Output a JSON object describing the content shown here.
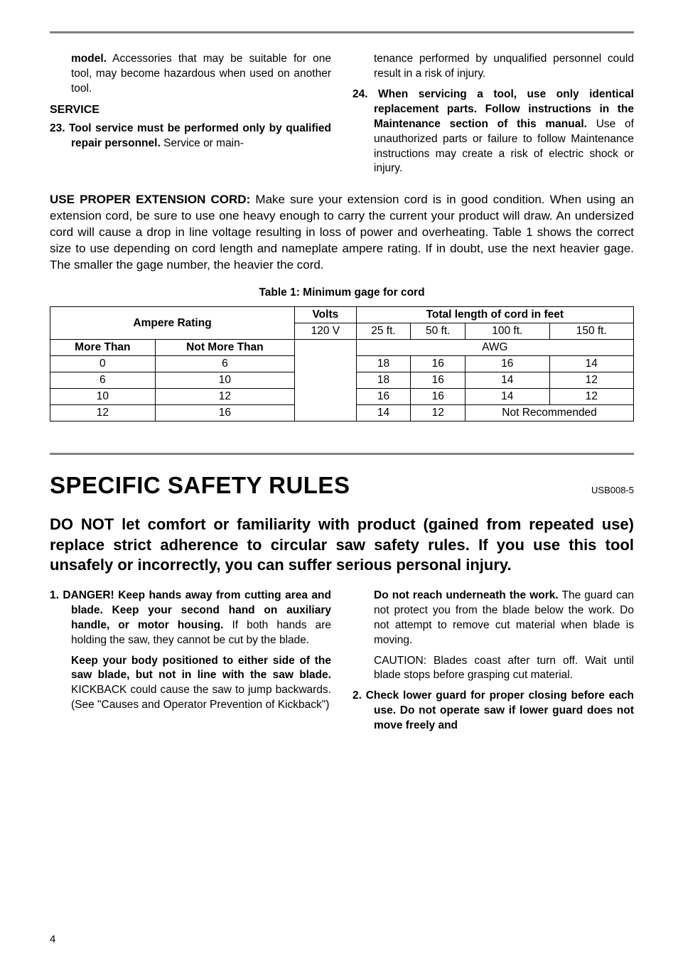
{
  "top": {
    "left": {
      "p1_a": "model.",
      "p1_b": " Accessories that may be suitable for one tool, may become hazardous when used on another tool.",
      "service_head": "SERVICE",
      "p2_a": "23. Tool service must be performed only by qualified repair personnel.",
      "p2_b": " Service or main-"
    },
    "right": {
      "p1": "tenance performed by unqualified personnel could result in a risk of injury.",
      "p2_a": "24. When servicing a tool, use only identical replacement parts. Follow instructions in the Maintenance section of this manual.",
      "p2_b": " Use of unauthorized parts or failure to follow Maintenance instructions may create a risk of electric shock or injury."
    }
  },
  "ext_cord": {
    "lead_bold": "USE PROPER EXTENSION CORD:",
    "lead_rest": " Make sure your extension cord is in good condition. When using an extension cord, be sure to use one heavy enough to carry the current your product will draw. An undersized cord will cause a drop in line voltage resulting in loss of power and overheating. Table 1 shows the correct size to use depending on cord length and nameplate ampere rating. If in doubt, use the next heavier gage. The smaller the gage number, the heavier the cord."
  },
  "table": {
    "caption": "Table 1: Minimum gage for cord",
    "headers": {
      "ampere": "Ampere Rating",
      "volts": "Volts",
      "total_len": "Total length of cord in feet",
      "v120": "120 V",
      "l25": "25 ft.",
      "l50": "50 ft.",
      "l100": "100 ft.",
      "l150": "150 ft.",
      "more_than": "More Than",
      "not_more_than": "Not More Than",
      "awg": "AWG",
      "not_rec": "Not Recommended"
    },
    "rows": [
      {
        "more": "0",
        "notmore": "6",
        "a": "18",
        "b": "16",
        "c": "16",
        "d": "14"
      },
      {
        "more": "6",
        "notmore": "10",
        "a": "18",
        "b": "16",
        "c": "14",
        "d": "12"
      },
      {
        "more": "10",
        "notmore": "12",
        "a": "16",
        "b": "16",
        "c": "14",
        "d": "12"
      },
      {
        "more": "12",
        "notmore": "16",
        "a": "14",
        "b": "12"
      }
    ]
  },
  "section": {
    "title": "SPECIFIC SAFETY RULES",
    "code": "USB008-5",
    "lead": "DO NOT let comfort or familiarity with product (gained from repeated use) replace strict adherence to circular saw safety rules. If you use this tool unsafely or incorrectly, you can suffer serious personal injury."
  },
  "rules": {
    "left": {
      "r1_a": "1.   DANGER! Keep hands away from cutting area and blade. Keep your second hand on auxiliary handle, or motor housing.",
      "r1_b": " If both hands are holding the saw, they cannot be cut by the blade.",
      "r1_c": "Keep your body positioned to either side of the saw blade, but not in line with the saw blade.",
      "r1_d": " KICKBACK could cause the saw to jump backwards. (See \"Causes and Operator Prevention of Kickback\")"
    },
    "right": {
      "r1_a": "Do not reach underneath the work.",
      "r1_b": " The guard can not protect you from the blade below the work. Do not attempt to remove cut material when blade is moving.",
      "r1_c": "CAUTION: Blades coast after turn off. Wait until blade stops before grasping cut material.",
      "r2": "2.   Check lower guard for proper closing before each use. Do not operate saw if lower guard does not move freely and"
    }
  },
  "page_number": "4",
  "styling": {
    "rule_color": "#808080",
    "text_color": "#000000",
    "background": "#ffffff",
    "body_fontsize": 15.5,
    "fullpara_fontsize": 17,
    "title_fontsize": 33,
    "lead_fontsize": 22,
    "code_fontsize": 13
  }
}
